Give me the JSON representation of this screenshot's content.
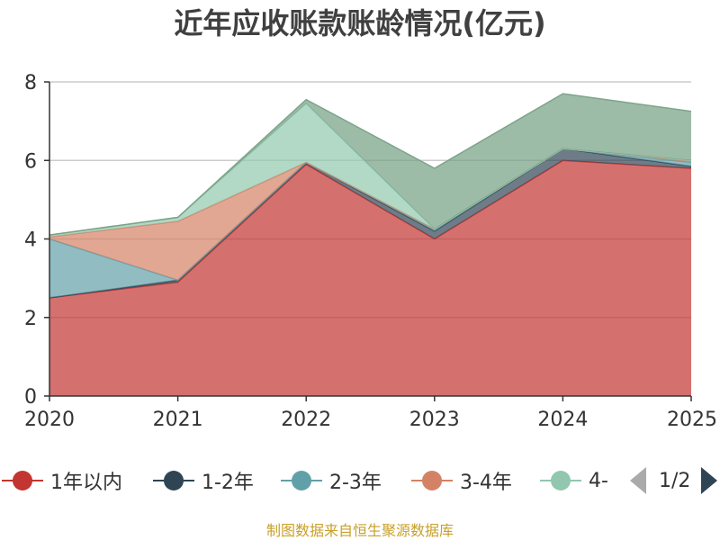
{
  "title": "近年应收账款账龄情况(亿元)",
  "source": "制图数据来自恒生聚源数据库",
  "legend": {
    "items": [
      {
        "label": "1年以内",
        "color": "#c23531"
      },
      {
        "label": "1-2年",
        "color": "#2f4554"
      },
      {
        "label": "2-3年",
        "color": "#61a0a8"
      },
      {
        "label": "3-4年",
        "color": "#d48265"
      },
      {
        "label": "4-",
        "color": "#91c7ae"
      }
    ],
    "page_text": "1/2"
  },
  "chart_data": {
    "type": "area",
    "stacked": true,
    "x": [
      "2020",
      "2021",
      "2022",
      "2023",
      "2024",
      "2025"
    ],
    "ylim": [
      0,
      8
    ],
    "yticks": [
      0,
      2,
      4,
      6,
      8
    ],
    "grid": true,
    "legend_position": "bottom",
    "series": [
      {
        "name": "1年以内",
        "color": "#c23531",
        "values": [
          2.5,
          2.9,
          5.9,
          4.0,
          6.0,
          5.8
        ]
      },
      {
        "name": "1-2年",
        "color": "#2f4554",
        "values": [
          0.0,
          0.05,
          0.05,
          0.2,
          0.3,
          0.05
        ]
      },
      {
        "name": "2-3年",
        "color": "#61a0a8",
        "values": [
          1.5,
          0.0,
          0.0,
          0.05,
          0.0,
          0.1
        ]
      },
      {
        "name": "3-4年",
        "color": "#d48265",
        "values": [
          0.05,
          1.5,
          0.0,
          0.0,
          0.0,
          0.05
        ]
      },
      {
        "name": "4-",
        "color": "#91c7ae",
        "values": [
          0.05,
          0.1,
          1.5,
          0.0,
          0.0,
          0.0
        ]
      },
      {
        "name": "",
        "color": "#749f83",
        "values": [
          0.0,
          0.0,
          0.1,
          1.55,
          1.4,
          1.25
        ]
      }
    ]
  }
}
